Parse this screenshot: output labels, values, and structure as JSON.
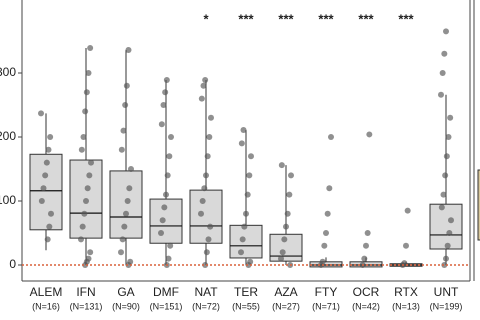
{
  "chart_data": {
    "type": "box",
    "categories": [
      "ALEM",
      "IFN",
      "GA",
      "DMF",
      "NAT",
      "TER",
      "AZA",
      "FTY",
      "OCR",
      "RTX",
      "UNT"
    ],
    "n_labels": [
      "(N=16)",
      "(N=131)",
      "(N=90)",
      "(N=151)",
      "(N=72)",
      "(N=55)",
      "(N=27)",
      "(N=71)",
      "(N=42)",
      "(N=13)",
      "(N=199)"
    ],
    "boxes": [
      {
        "whisker_low": 23,
        "q1": 55,
        "median": 116,
        "q3": 173,
        "whisker_high": 237,
        "points": [
          237,
          200,
          180,
          160,
          140,
          120,
          100,
          80,
          60,
          40
        ]
      },
      {
        "whisker_low": 0,
        "q1": 42,
        "median": 81,
        "q3": 164,
        "whisker_high": 339,
        "points": [
          339,
          300,
          270,
          240,
          200,
          180,
          160,
          140,
          120,
          100,
          80,
          60,
          40,
          20,
          10,
          5,
          0
        ]
      },
      {
        "whisker_low": 0,
        "q1": 42,
        "median": 75,
        "q3": 147,
        "whisker_high": 336,
        "points": [
          336,
          280,
          250,
          210,
          180,
          150,
          120,
          100,
          80,
          60,
          40,
          20,
          5,
          0
        ]
      },
      {
        "whisker_low": 0,
        "q1": 34,
        "median": 61,
        "q3": 103,
        "whisker_high": 289,
        "points": [
          289,
          270,
          250,
          220,
          200,
          170,
          140,
          110,
          90,
          70,
          50,
          30,
          10,
          0
        ]
      },
      {
        "whisker_low": 0,
        "q1": 34,
        "median": 61,
        "q3": 117,
        "whisker_high": 289,
        "points": [
          289,
          280,
          260,
          230,
          200,
          170,
          140,
          120,
          100,
          80,
          60,
          40,
          20,
          0
        ]
      },
      {
        "whisker_low": 0,
        "q1": 11,
        "median": 30,
        "q3": 62,
        "whisker_high": 211,
        "points": [
          211,
          190,
          170,
          140,
          110,
          80,
          60,
          40,
          20,
          5,
          0
        ]
      },
      {
        "whisker_low": 0,
        "q1": 6,
        "median": 14,
        "q3": 48,
        "whisker_high": 156,
        "points": [
          156,
          140,
          110,
          80,
          60,
          40,
          20,
          10,
          0
        ]
      },
      {
        "whisker_low": -3,
        "q1": -3,
        "median": 0,
        "q3": 5,
        "whisker_high": 12,
        "points": [
          200,
          120,
          80,
          50,
          30,
          5,
          0
        ]
      },
      {
        "whisker_low": -3,
        "q1": -3,
        "median": 0,
        "q3": 5,
        "whisker_high": 12,
        "points": [
          204,
          50,
          30,
          10,
          0
        ]
      },
      {
        "whisker_low": -2,
        "q1": -2,
        "median": 0,
        "q3": 2,
        "whisker_high": 5,
        "points": [
          85,
          30,
          3,
          0
        ]
      },
      {
        "whisker_low": 0,
        "q1": 25,
        "median": 47,
        "q3": 95,
        "whisker_high": 266,
        "points": [
          365,
          330,
          300,
          266,
          230,
          200,
          170,
          140,
          110,
          90,
          70,
          50,
          30,
          10,
          0
        ]
      }
    ],
    "annotations": [
      {
        "category": "NAT",
        "text": "*"
      },
      {
        "category": "TER",
        "text": "***"
      },
      {
        "category": "AZA",
        "text": "***"
      },
      {
        "category": "FTY",
        "text": "***"
      },
      {
        "category": "OCR",
        "text": "***"
      },
      {
        "category": "RTX",
        "text": "***"
      }
    ],
    "box_color": "#d9d9d9",
    "point_color": "#555555",
    "reference_line": 0,
    "reference_color": "#d9603a",
    "ylim": [
      -25,
      400
    ],
    "yticks": [
      0,
      100,
      200,
      300
    ]
  }
}
